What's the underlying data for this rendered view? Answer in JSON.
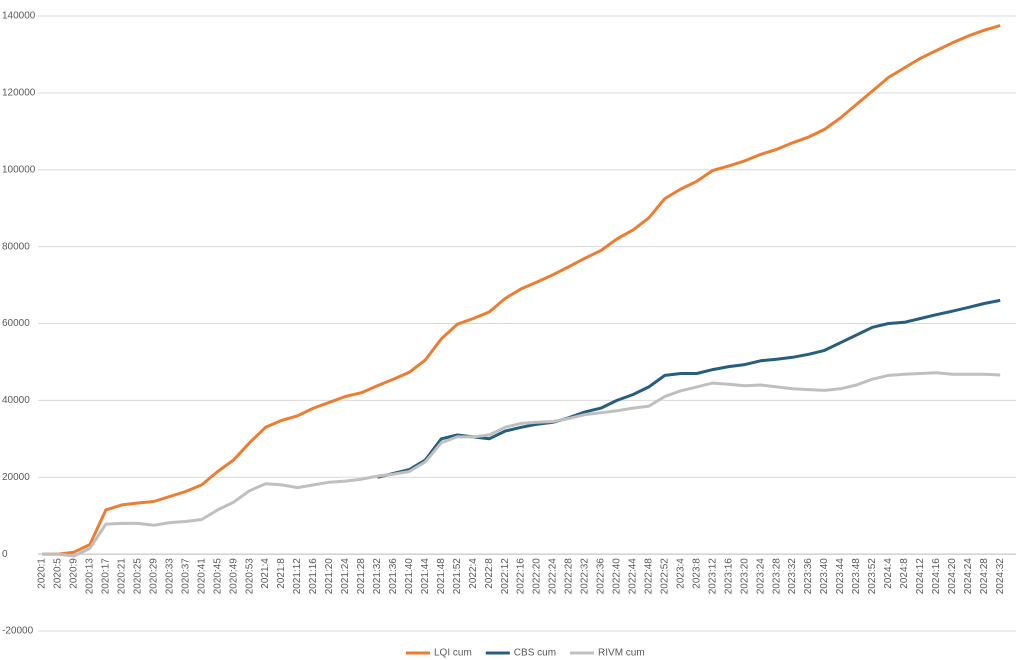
{
  "chart_data": {
    "type": "line",
    "categories": [
      "2020:1",
      "2020:5",
      "2020:9",
      "2020:13",
      "2020:17",
      "2020:21",
      "2020:25",
      "2020:29",
      "2020:33",
      "2020:37",
      "2020:41",
      "2020:45",
      "2020:49",
      "2020:53",
      "2021:4",
      "2021:8",
      "2021:12",
      "2021:16",
      "2021:20",
      "2021:24",
      "2021:28",
      "2021:32",
      "2021:36",
      "2021:40",
      "2021:44",
      "2021:48",
      "2021:52",
      "2022:4",
      "2022:8",
      "2022:12",
      "2022:16",
      "2022:20",
      "2022:24",
      "2022:28",
      "2022:32",
      "2022:36",
      "2022:40",
      "2022:44",
      "2022:48",
      "2022:52",
      "2023:4",
      "2023:8",
      "2023:12",
      "2023:16",
      "2023:20",
      "2023:24",
      "2023:28",
      "2023:32",
      "2023:36",
      "2023:40",
      "2023:44",
      "2023:48",
      "2023:52",
      "2024:4",
      "2024:8",
      "2024:12",
      "2024:16",
      "2024:20",
      "2024:24",
      "2024:28",
      "2024:32"
    ],
    "series": [
      {
        "name": "LQI cum",
        "color": "#ed7d31",
        "values": [
          0,
          0,
          500,
          2500,
          11500,
          12800,
          13300,
          13700,
          15000,
          16300,
          18000,
          21500,
          24500,
          29000,
          33000,
          34800,
          36000,
          38000,
          39500,
          41000,
          42000,
          43800,
          45500,
          47300,
          50500,
          56000,
          59800,
          61300,
          63000,
          66500,
          69000,
          70800,
          72700,
          74800,
          77000,
          79000,
          82000,
          84300,
          87500,
          92500,
          95000,
          97000,
          99800,
          101000,
          102300,
          104000,
          105300,
          107000,
          108500,
          110500,
          113500,
          117000,
          120500,
          124000,
          126500,
          129000,
          131000,
          133000,
          134800,
          136300,
          137500
        ]
      },
      {
        "name": "CBS cum",
        "color": "#255e7e",
        "values": [
          null,
          null,
          null,
          null,
          null,
          null,
          null,
          null,
          null,
          null,
          null,
          null,
          null,
          null,
          null,
          null,
          null,
          null,
          null,
          null,
          null,
          20000,
          21000,
          22000,
          24500,
          30000,
          31000,
          30500,
          30000,
          32000,
          33000,
          33800,
          34300,
          35500,
          37000,
          38000,
          40000,
          41500,
          43500,
          46500,
          47000,
          47000,
          48000,
          48800,
          49300,
          50300,
          50700,
          51200,
          52000,
          53000,
          55000,
          57000,
          59000,
          60000,
          60300,
          61300,
          62300,
          63200,
          64200,
          65200,
          66000
        ]
      },
      {
        "name": "RIVM cum",
        "color": "#bfbfbf",
        "values": [
          0,
          0,
          -500,
          1500,
          7800,
          8000,
          8000,
          7500,
          8200,
          8500,
          9000,
          11500,
          13500,
          16500,
          18300,
          18000,
          17300,
          18000,
          18700,
          19000,
          19500,
          20300,
          20800,
          21500,
          24000,
          29000,
          30500,
          30500,
          31000,
          33000,
          34000,
          34300,
          34500,
          35300,
          36300,
          36800,
          37300,
          38000,
          38500,
          41000,
          42500,
          43500,
          44500,
          44200,
          43800,
          44000,
          43500,
          43000,
          42800,
          42600,
          43000,
          44000,
          45500,
          46500,
          46800,
          47000,
          47200,
          46800,
          46800,
          46800,
          46600
        ]
      }
    ],
    "ylim": [
      -20000,
      140000
    ],
    "yticks": [
      -20000,
      0,
      20000,
      40000,
      60000,
      80000,
      100000,
      120000,
      140000
    ],
    "grid": true
  }
}
